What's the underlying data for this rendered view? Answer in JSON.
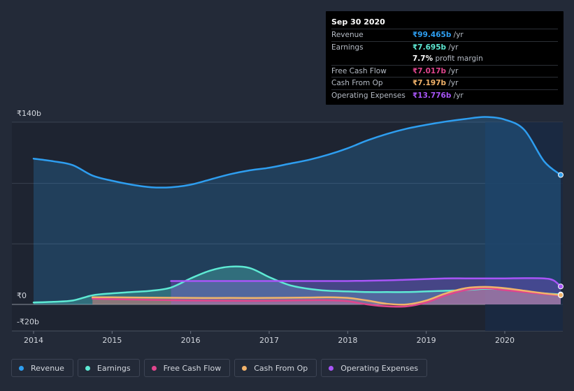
{
  "tooltip": {
    "date": "Sep 30 2020",
    "rows": [
      {
        "label": "Revenue",
        "value": "₹99.465b",
        "unit": " /yr",
        "color": "#2e9ef0"
      },
      {
        "label": "Earnings",
        "value": "₹7.695b",
        "unit": " /yr",
        "color": "#5eead4"
      },
      {
        "label": "",
        "value": "7.7%",
        "unit": " profit margin",
        "color": "#ffffff"
      },
      {
        "label": "Free Cash Flow",
        "value": "₹7.017b",
        "unit": " /yr",
        "color": "#e0458d"
      },
      {
        "label": "Cash From Op",
        "value": "₹7.197b",
        "unit": " /yr",
        "color": "#f2b36a"
      },
      {
        "label": "Operating Expenses",
        "value": "₹13.776b",
        "unit": " /yr",
        "color": "#a855f7"
      }
    ]
  },
  "legend": [
    {
      "label": "Revenue",
      "color": "#2e9ef0"
    },
    {
      "label": "Earnings",
      "color": "#5eead4"
    },
    {
      "label": "Free Cash Flow",
      "color": "#e0458d"
    },
    {
      "label": "Cash From Op",
      "color": "#f2b36a"
    },
    {
      "label": "Operating Expenses",
      "color": "#a855f7"
    }
  ],
  "chart_data": {
    "type": "area",
    "title": "",
    "xlabel": "",
    "ylabel": "",
    "unit": "₹ billions",
    "xlim": [
      2013.9,
      2020.75
    ],
    "ylim": [
      -20,
      140
    ],
    "y_tick_labels": [
      {
        "value": 140,
        "label": "₹140b"
      },
      {
        "value": 0,
        "label": "₹0"
      },
      {
        "value": -20,
        "label": "-₹20b"
      }
    ],
    "x_tick_labels": [
      {
        "value": 2014,
        "label": "2014"
      },
      {
        "value": 2015,
        "label": "2015"
      },
      {
        "value": 2016,
        "label": "2016"
      },
      {
        "value": 2017,
        "label": "2017"
      },
      {
        "value": 2018,
        "label": "2018"
      },
      {
        "value": 2019,
        "label": "2019"
      },
      {
        "value": 2020,
        "label": "2020"
      }
    ],
    "highlight_from": 2019.75,
    "series": [
      {
        "name": "Revenue",
        "color": "#2e9ef0",
        "x": [
          2014.0,
          2014.25,
          2014.5,
          2014.75,
          2015.0,
          2015.25,
          2015.5,
          2015.75,
          2016.0,
          2016.25,
          2016.5,
          2016.75,
          2017.0,
          2017.25,
          2017.5,
          2017.75,
          2018.0,
          2018.25,
          2018.5,
          2018.75,
          2019.0,
          2019.25,
          2019.5,
          2019.75,
          2020.0,
          2020.25,
          2020.5,
          2020.75
        ],
        "values": [
          112,
          110,
          107,
          99,
          95,
          92,
          90,
          90,
          92,
          96,
          100,
          103,
          105,
          108,
          111,
          115,
          120,
          126,
          131,
          135,
          138,
          140.5,
          142.5,
          144,
          142,
          134,
          110,
          99.5
        ]
      },
      {
        "name": "Earnings",
        "color": "#5eead4",
        "x": [
          2014.0,
          2014.25,
          2014.5,
          2014.75,
          2015.0,
          2015.25,
          2015.5,
          2015.75,
          2016.0,
          2016.25,
          2016.5,
          2016.75,
          2017.0,
          2017.25,
          2017.5,
          2017.75,
          2018.0,
          2018.25,
          2018.5,
          2018.75,
          2019.0,
          2019.25,
          2019.5,
          2019.75,
          2020.0,
          2020.25,
          2020.5,
          2020.75
        ],
        "values": [
          1.5,
          2,
          3,
          7,
          8.5,
          9.5,
          10.5,
          13,
          20,
          26,
          29,
          28,
          21,
          15,
          12,
          10.5,
          10,
          9.5,
          9.5,
          9.5,
          10,
          10.5,
          11,
          12,
          11.5,
          10,
          8.5,
          7.7
        ]
      },
      {
        "name": "Free Cash Flow",
        "color": "#e0458d",
        "x": [
          2014.75,
          2015.0,
          2015.5,
          2016.0,
          2016.5,
          2017.0,
          2017.5,
          2017.75,
          2018.0,
          2018.25,
          2018.5,
          2018.75,
          2019.0,
          2019.25,
          2019.5,
          2019.75,
          2020.0,
          2020.25,
          2020.5,
          2020.75
        ],
        "values": [
          4.5,
          4,
          3.5,
          3,
          2.8,
          2.8,
          3.2,
          3.2,
          2.5,
          0,
          -1.5,
          -1.5,
          1.5,
          7,
          11,
          12.5,
          11,
          9.5,
          8,
          7
        ]
      },
      {
        "name": "Cash From Op",
        "color": "#f2b36a",
        "x": [
          2014.75,
          2015.0,
          2015.5,
          2016.0,
          2016.5,
          2017.0,
          2017.5,
          2017.75,
          2018.0,
          2018.25,
          2018.5,
          2018.75,
          2019.0,
          2019.25,
          2019.5,
          2019.75,
          2020.0,
          2020.25,
          2020.5,
          2020.75
        ],
        "values": [
          5.5,
          5.5,
          5.2,
          5,
          5,
          5,
          5.3,
          5.5,
          5,
          3,
          0.5,
          0,
          3,
          8.5,
          12.5,
          13.5,
          12.5,
          10.5,
          8.5,
          7.2
        ]
      },
      {
        "name": "Operating Expenses",
        "color": "#a855f7",
        "x": [
          2015.75,
          2016.0,
          2016.5,
          2017.0,
          2017.5,
          2018.0,
          2018.5,
          2018.75,
          2019.0,
          2019.25,
          2019.5,
          2019.75,
          2020.0,
          2020.25,
          2020.5,
          2020.62,
          2020.75
        ],
        "values": [
          18,
          18,
          18,
          18,
          18,
          18,
          18.5,
          19,
          19.5,
          20,
          20,
          20,
          20,
          20.2,
          20,
          18.5,
          13.8
        ]
      }
    ]
  }
}
